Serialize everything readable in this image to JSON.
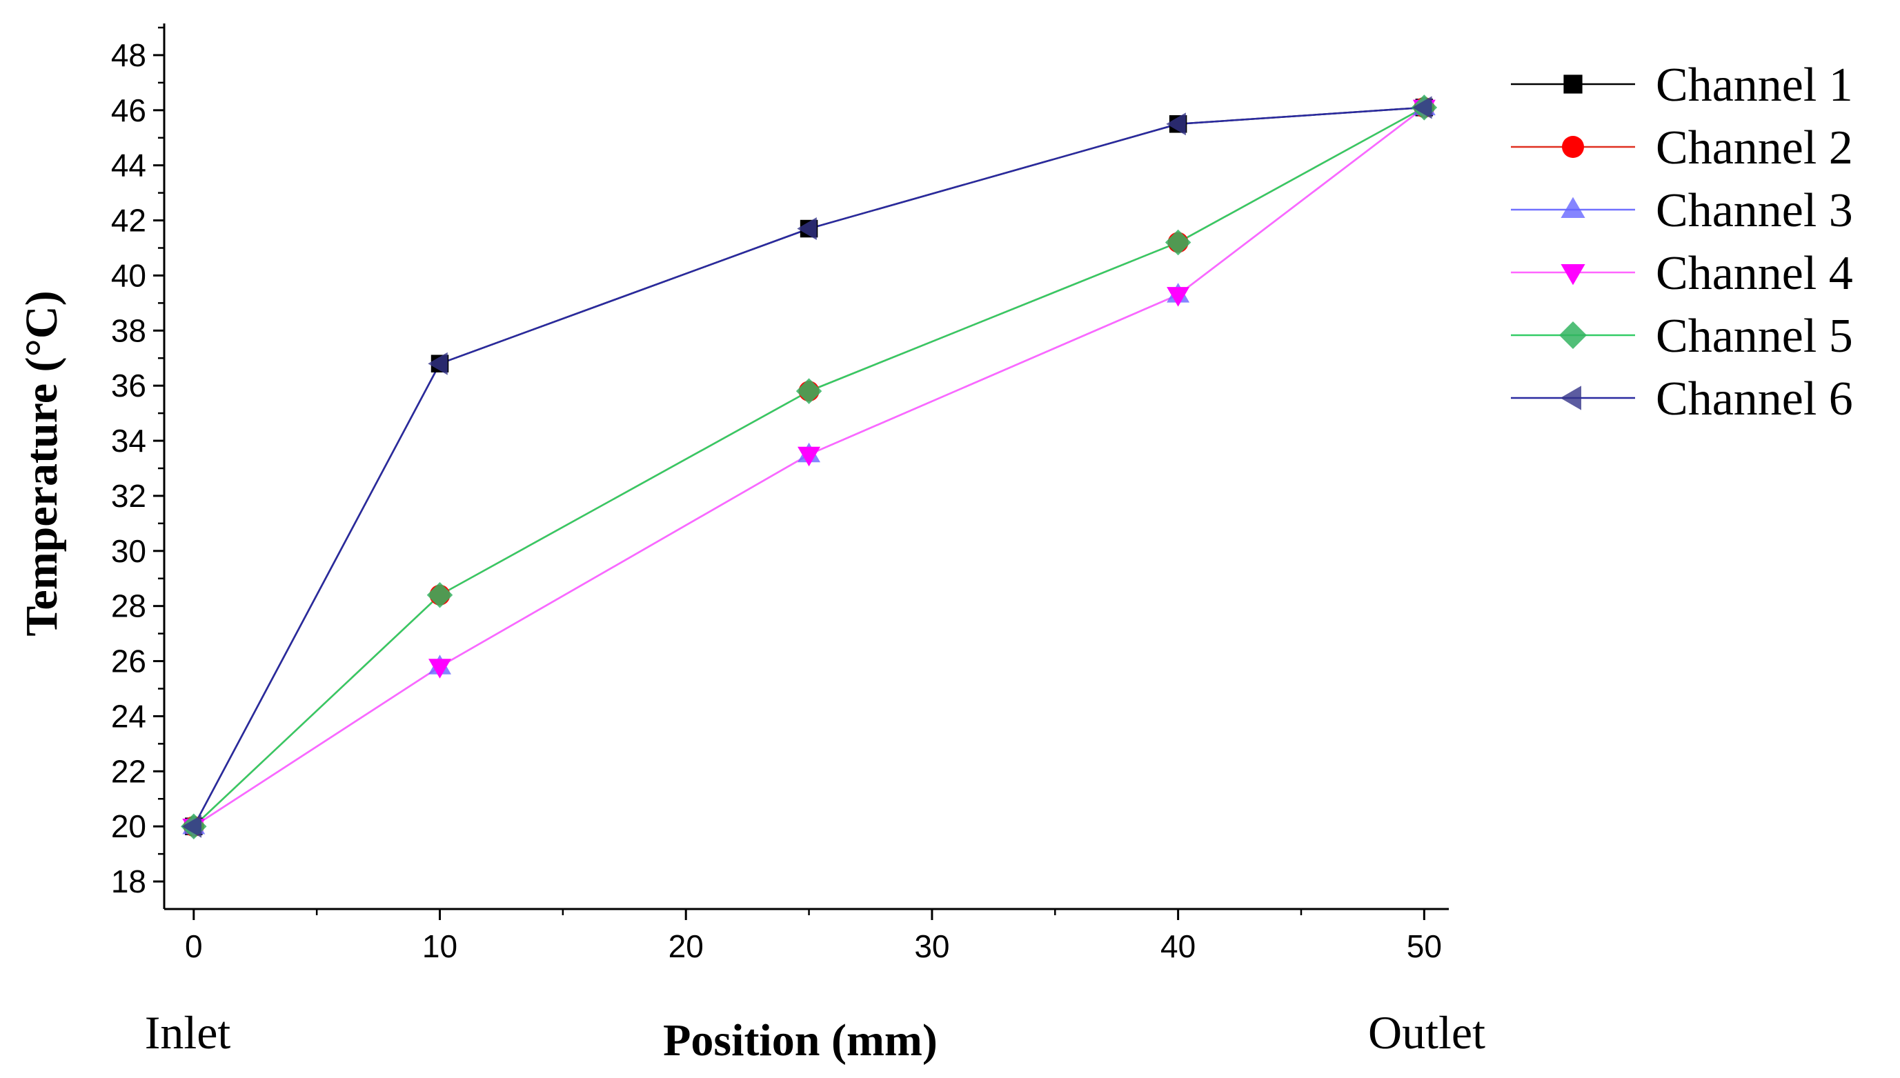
{
  "chart_data": {
    "type": "line",
    "title": "",
    "xlabel": "Position (mm)",
    "ylabel": "Temperature (°C)",
    "xlim": [
      -1.2,
      51
    ],
    "ylim": [
      17,
      49
    ],
    "x_ticks": [
      0,
      10,
      20,
      30,
      40,
      50
    ],
    "y_ticks": [
      18,
      20,
      22,
      24,
      26,
      28,
      30,
      32,
      34,
      36,
      38,
      40,
      42,
      44,
      46,
      48
    ],
    "grid": false,
    "legend_position": "outside-right-top",
    "annotations": {
      "inlet": "Inlet",
      "outlet": "Outlet"
    },
    "x": [
      0,
      10,
      25,
      40,
      50
    ],
    "series": [
      {
        "name": "Channel 1",
        "values": [
          20.0,
          36.8,
          41.7,
          45.5,
          46.1
        ],
        "color": "#000000",
        "marker": "square",
        "marker_color": "#000000",
        "marker_opacity": 1
      },
      {
        "name": "Channel 2",
        "values": [
          20.0,
          28.4,
          35.8,
          41.2,
          46.1
        ],
        "color": "#e03020",
        "marker": "circle",
        "marker_color": "#ff0000",
        "marker_opacity": 1
      },
      {
        "name": "Channel 3",
        "values": [
          20.0,
          25.8,
          33.5,
          39.3,
          46.1
        ],
        "color": "#7070ff",
        "marker": "triangle-up",
        "marker_color": "#6666ff",
        "marker_opacity": 0.8
      },
      {
        "name": "Channel 4",
        "values": [
          20.0,
          25.8,
          33.5,
          39.3,
          46.1
        ],
        "color": "#ff66ff",
        "marker": "triangle-down",
        "marker_color": "#ff00ff",
        "marker_opacity": 1
      },
      {
        "name": "Channel 5",
        "values": [
          20.0,
          28.4,
          35.8,
          41.2,
          46.1
        ],
        "color": "#33cc66",
        "marker": "diamond",
        "marker_color": "#33b460",
        "marker_opacity": 0.85
      },
      {
        "name": "Channel 6",
        "values": [
          20.0,
          36.8,
          41.7,
          45.5,
          46.1
        ],
        "color": "#2a2aa0",
        "marker": "triangle-left",
        "marker_color": "#333388",
        "marker_opacity": 0.8
      }
    ]
  }
}
